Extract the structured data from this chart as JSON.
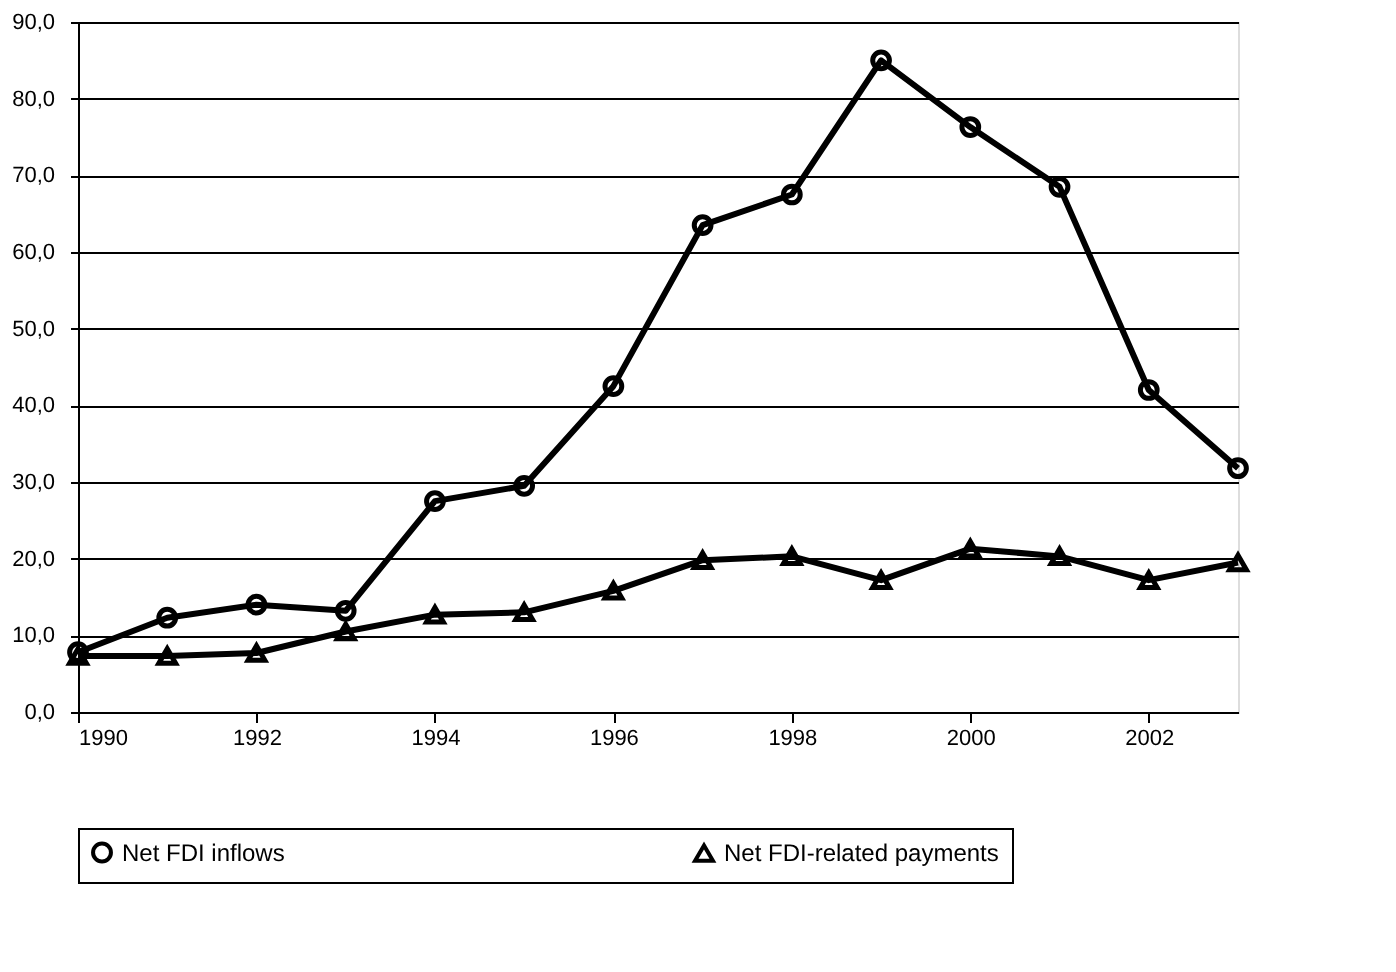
{
  "chart_data": {
    "type": "line",
    "x": [
      1990,
      1991,
      1992,
      1993,
      1994,
      1995,
      1996,
      1997,
      1998,
      1999,
      2000,
      2001,
      2002,
      2003
    ],
    "series": [
      {
        "name": "Net FDI inflows",
        "color": "#000000",
        "marker": "circle",
        "values": [
          7.8,
          12.3,
          14.0,
          13.2,
          27.5,
          29.5,
          42.5,
          63.5,
          67.5,
          85.0,
          76.3,
          68.5,
          42.0,
          31.8
        ]
      },
      {
        "name": "Net FDI-related payments",
        "color": "#000000",
        "marker": "triangle",
        "values": [
          7.3,
          7.3,
          7.7,
          10.5,
          12.7,
          13.0,
          15.8,
          19.8,
          20.3,
          17.2,
          21.3,
          20.3,
          17.2,
          19.5
        ]
      }
    ],
    "xlim": [
      1990,
      2003
    ],
    "xticks": [
      1990,
      1992,
      1994,
      1996,
      1998,
      2000,
      2002
    ],
    "ylim": [
      0,
      90
    ],
    "yticks": [
      {
        "value": 0,
        "label": "0,0"
      },
      {
        "value": 10,
        "label": "10,0"
      },
      {
        "value": 20,
        "label": "20,0"
      },
      {
        "value": 30,
        "label": "30,0"
      },
      {
        "value": 40,
        "label": "40,0"
      },
      {
        "value": 50,
        "label": "50,0"
      },
      {
        "value": 60,
        "label": "60,0"
      },
      {
        "value": 70,
        "label": "70,0"
      },
      {
        "value": 80,
        "label": "80,0"
      },
      {
        "value": 90,
        "label": "90,0"
      }
    ],
    "grid": "y",
    "legend": "bottom",
    "line_style": "solid"
  }
}
